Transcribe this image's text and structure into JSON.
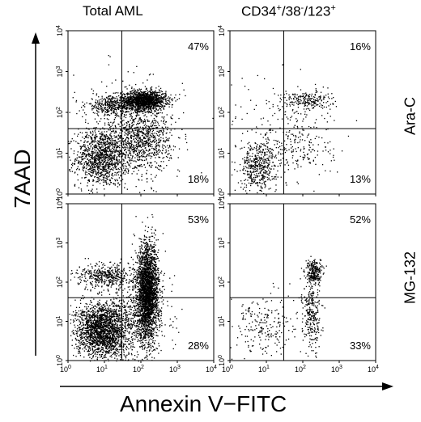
{
  "figure": {
    "col_titles": [
      {
        "text": "Total AML"
      },
      {
        "parts": [
          "CD34",
          "+",
          "/38",
          "-",
          "/123",
          "+"
        ]
      }
    ],
    "row_labels": [
      "Ara-C",
      "MG-132"
    ],
    "y_title": "7AAD",
    "x_title": "Annexin V−FITC"
  },
  "chart_data": [
    {
      "type": "scatter",
      "title": "Total AML",
      "row": "Ara-C",
      "xlabel": "Annexin V−FITC",
      "ylabel": "7AAD",
      "xscale": "log",
      "yscale": "log",
      "xlim": [
        1,
        10000
      ],
      "ylim": [
        1,
        10000
      ],
      "xticks": [
        "10^0",
        "10^1",
        "10^2",
        "10^3",
        "10^4"
      ],
      "yticks": [
        "10^0",
        "10^1",
        "10^2",
        "10^3",
        "10^4"
      ],
      "quadrant_gate": {
        "x": 30,
        "y": 40
      },
      "annotations": {
        "upper_right": "47%",
        "lower_right": "18%"
      },
      "clusters": [
        {
          "cx": 8,
          "cy": 8,
          "sx": 0.35,
          "sy": 0.35,
          "n": 1100
        },
        {
          "cx": 120,
          "cy": 200,
          "sx": 0.3,
          "sy": 0.12,
          "n": 1500
        },
        {
          "cx": 15,
          "cy": 150,
          "sx": 0.35,
          "sy": 0.12,
          "n": 350
        },
        {
          "cx": 100,
          "cy": 20,
          "sx": 0.4,
          "sy": 0.35,
          "n": 800
        },
        {
          "cx": 40,
          "cy": 30,
          "sx": 0.8,
          "sy": 0.7,
          "n": 350
        }
      ]
    },
    {
      "type": "scatter",
      "title": "CD34+/38-/123+",
      "row": "Ara-C",
      "xlabel": "Annexin V−FITC",
      "ylabel": "7AAD",
      "xscale": "log",
      "yscale": "log",
      "xlim": [
        1,
        10000
      ],
      "ylim": [
        1,
        10000
      ],
      "xticks": [
        "10^0",
        "10^1",
        "10^2",
        "10^3",
        "10^4"
      ],
      "yticks": [
        "10^0",
        "10^1",
        "10^2",
        "10^3",
        "10^4"
      ],
      "quadrant_gate": {
        "x": 30,
        "y": 40
      },
      "annotations": {
        "upper_right": "16%",
        "lower_right": "13%"
      },
      "clusters": [
        {
          "cx": 6,
          "cy": 5,
          "sx": 0.25,
          "sy": 0.3,
          "n": 450
        },
        {
          "cx": 120,
          "cy": 200,
          "sx": 0.35,
          "sy": 0.12,
          "n": 220
        },
        {
          "cx": 80,
          "cy": 15,
          "sx": 0.5,
          "sy": 0.45,
          "n": 180
        },
        {
          "cx": 30,
          "cy": 40,
          "sx": 0.8,
          "sy": 0.7,
          "n": 150
        }
      ]
    },
    {
      "type": "scatter",
      "title": "Total AML",
      "row": "MG-132",
      "xlabel": "Annexin V−FITC",
      "ylabel": "7AAD",
      "xscale": "log",
      "yscale": "log",
      "xlim": [
        1,
        10000
      ],
      "ylim": [
        1,
        10000
      ],
      "xticks": [
        "10^0",
        "10^1",
        "10^2",
        "10^3",
        "10^4"
      ],
      "yticks": [
        "10^0",
        "10^1",
        "10^2",
        "10^3",
        "10^4"
      ],
      "quadrant_gate": {
        "x": 30,
        "y": 40
      },
      "annotations": {
        "upper_right": "53%",
        "lower_right": "28%"
      },
      "clusters": [
        {
          "cx": 8,
          "cy": 6,
          "sx": 0.35,
          "sy": 0.35,
          "n": 1900
        },
        {
          "cx": 150,
          "cy": 60,
          "sx": 0.15,
          "sy": 0.6,
          "n": 2600
        },
        {
          "cx": 12,
          "cy": 150,
          "sx": 0.4,
          "sy": 0.15,
          "n": 450
        },
        {
          "cx": 50,
          "cy": 10,
          "sx": 0.5,
          "sy": 0.5,
          "n": 600
        }
      ]
    },
    {
      "type": "scatter",
      "title": "CD34+/38-/123+",
      "row": "MG-132",
      "xlabel": "Annexin V−FITC",
      "ylabel": "7AAD",
      "xscale": "log",
      "yscale": "log",
      "xlim": [
        1,
        10000
      ],
      "ylim": [
        1,
        10000
      ],
      "xticks": [
        "10^0",
        "10^1",
        "10^2",
        "10^3",
        "10^4"
      ],
      "yticks": [
        "10^0",
        "10^1",
        "10^2",
        "10^3",
        "10^4"
      ],
      "quadrant_gate": {
        "x": 30,
        "y": 40
      },
      "annotations": {
        "upper_right": "52%",
        "lower_right": "33%"
      },
      "clusters": [
        {
          "cx": 200,
          "cy": 180,
          "sx": 0.12,
          "sy": 0.15,
          "n": 250
        },
        {
          "cx": 170,
          "cy": 15,
          "sx": 0.12,
          "sy": 0.45,
          "n": 280
        },
        {
          "cx": 8,
          "cy": 8,
          "sx": 0.45,
          "sy": 0.4,
          "n": 220
        }
      ]
    }
  ]
}
